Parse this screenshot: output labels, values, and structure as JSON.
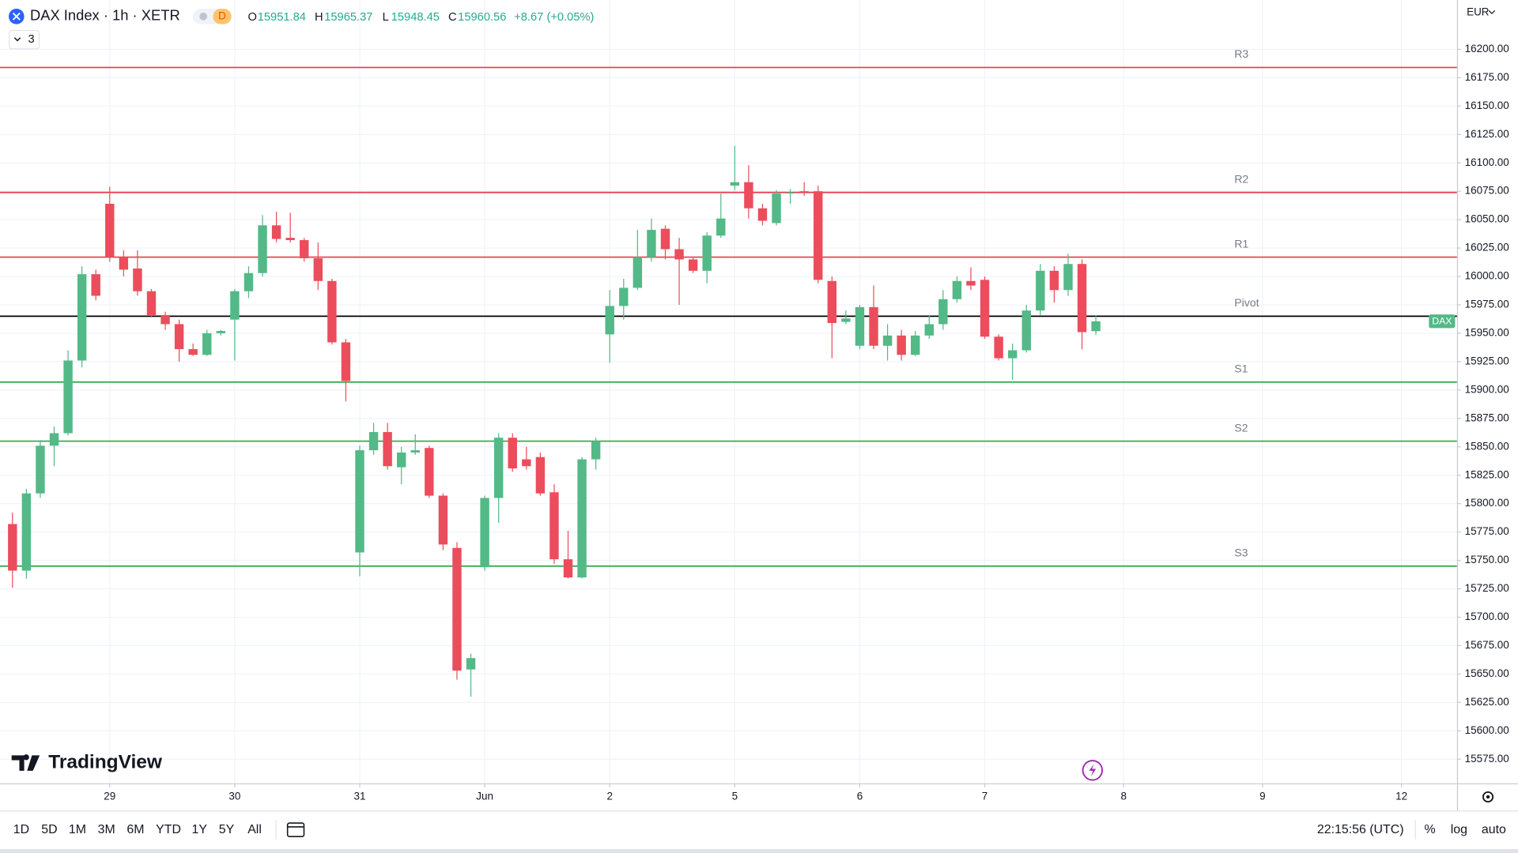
{
  "header": {
    "symbol": "DAX Index · 1h · XETR",
    "interval_badge": "D",
    "indicator_count": "3",
    "open_label": "O",
    "high_label": "H",
    "low_label": "L",
    "close_label": "C",
    "change": "+8.67 (+0.05%)"
  },
  "currency": "EUR",
  "brand": "TradingView",
  "price_label": "DAX",
  "toolbar": {
    "ranges": [
      "1D",
      "5D",
      "1M",
      "3M",
      "6M",
      "YTD",
      "1Y",
      "5Y",
      "All"
    ],
    "clock": "22:15:56 (UTC)",
    "percent": "%",
    "log": "log",
    "auto": "auto"
  },
  "chart_data": {
    "type": "candlestick",
    "up_color": "#53b987",
    "down_color": "#eb4d5c",
    "open": [
      15782,
      15741,
      15809,
      15851,
      15862,
      15926,
      16002,
      16064,
      16017,
      16007,
      15987,
      15966,
      15958,
      15936,
      15931,
      15950,
      15962,
      15987,
      16003,
      16045,
      16034,
      16032,
      16016,
      15996,
      15942,
      15757,
      15847,
      15863,
      15832,
      15845,
      15849,
      15807,
      15761,
      15654,
      15744,
      15805,
      15858,
      15839,
      15841,
      15810,
      15751,
      15735,
      15839,
      15949,
      15974,
      15990,
      16017,
      16042,
      16024,
      16015,
      16005,
      16036,
      16080,
      16083,
      16060,
      16047,
      16073,
      16075,
      16075,
      15996,
      15960,
      15939,
      15973,
      15939,
      15948,
      15931,
      15948,
      15958,
      15980,
      15996,
      15997,
      15947,
      15928,
      15935,
      15970,
      16005,
      15988,
      16011,
      15951.84
    ],
    "high": [
      15792,
      15813,
      15856,
      15868,
      15935,
      16009,
      16006,
      16079,
      16023,
      16023,
      15989,
      15969,
      15962,
      15941,
      15953,
      15953,
      15989,
      16009,
      16054,
      16057,
      16056,
      16034,
      16030,
      15998,
      15945,
      15851,
      15871,
      15871,
      15850,
      15861,
      15851,
      15809,
      15766,
      15668,
      15807,
      15862,
      15862,
      15850,
      15845,
      15817,
      15776,
      15841,
      15858,
      15988,
      15998,
      16041,
      16051,
      16045,
      16034,
      16017,
      16039,
      16073,
      16115,
      16098,
      16064,
      16076,
      16077,
      16083,
      16080,
      16000,
      15970,
      15975,
      15992,
      15958,
      15953,
      15952,
      15966,
      15988,
      16000,
      16008,
      16000,
      15949,
      15941,
      15975,
      16011,
      16009,
      16020,
      16015,
      15965.37
    ],
    "low": [
      15726,
      15734,
      15805,
      15833,
      15860,
      15920,
      15979,
      16013,
      16000,
      15983,
      15964,
      15953,
      15925,
      15930,
      15930,
      15948,
      15926,
      15981,
      16000,
      16030,
      16030,
      16013,
      15988,
      15940,
      15890,
      15736,
      15843,
      15830,
      15817,
      15843,
      15805,
      15759,
      15645,
      15630,
      15741,
      15783,
      15828,
      15830,
      15807,
      15747,
      15734,
      15734,
      15830,
      15924,
      15962,
      15988,
      16013,
      16015,
      15975,
      16003,
      15994,
      16034,
      16076,
      16051,
      16045,
      16045,
      16064,
      16071,
      15994,
      15928,
      15958,
      15936,
      15936,
      15926,
      15926,
      15930,
      15945,
      15953,
      15977,
      15988,
      15945,
      15926,
      15909,
      15933,
      15966,
      15977,
      15983,
      15936,
      15948.45
    ],
    "close": [
      15741,
      15809,
      15851,
      15862,
      15926,
      16002,
      15983,
      16017,
      16006,
      15987,
      15966,
      15958,
      15936,
      15931,
      15950,
      15952,
      15987,
      16003,
      16045,
      16033,
      16032,
      16016,
      15996,
      15942,
      15908,
      15847,
      15863,
      15833,
      15845,
      15847,
      15807,
      15764,
      15653,
      15664,
      15805,
      15858,
      15831,
      15833,
      15809,
      15751,
      15735,
      15839,
      15855,
      15974,
      15990,
      16017,
      16041,
      16024,
      16015,
      16005,
      16036,
      16051,
      16083,
      16060,
      16049,
      16073,
      16074,
      16074,
      15997,
      15959,
      15963,
      15973,
      15939,
      15948,
      15931,
      15948,
      15958,
      15980,
      15996,
      15992,
      15947,
      15928,
      15935,
      15970,
      16005,
      15988,
      16011,
      15951,
      15960.56
    ],
    "levels": [
      {
        "label": "R3",
        "value": 16184,
        "color": "#e8374a"
      },
      {
        "label": "R2",
        "value": 16074,
        "color": "#e8374a"
      },
      {
        "label": "R1",
        "value": 16017,
        "color": "#e8374a"
      },
      {
        "label": "Pivot",
        "value": 15965,
        "color": "#000000"
      },
      {
        "label": "S1",
        "value": 15907,
        "color": "#27a844"
      },
      {
        "label": "S2",
        "value": 15855,
        "color": "#27a844"
      },
      {
        "label": "S3",
        "value": 15745,
        "color": "#27a844"
      }
    ],
    "xlim": [
      -0.9,
      104
    ],
    "xticks": [
      {
        "value": 7,
        "label": "29"
      },
      {
        "value": 16,
        "label": "30"
      },
      {
        "value": 25,
        "label": "31"
      },
      {
        "value": 34,
        "label": "Jun"
      },
      {
        "value": 43,
        "label": "2"
      },
      {
        "value": 52,
        "label": "5"
      },
      {
        "value": 61,
        "label": "6"
      },
      {
        "value": 70,
        "label": "7"
      },
      {
        "value": 80,
        "label": "8"
      },
      {
        "value": 90,
        "label": "9"
      },
      {
        "value": 100,
        "label": "12"
      }
    ],
    "ylim": [
      15553.7,
      16243.4
    ],
    "yticks": [
      {
        "value": 16200,
        "label": "16200.00"
      },
      {
        "value": 16175,
        "label": "16175.00"
      },
      {
        "value": 16150,
        "label": "16150.00"
      },
      {
        "value": 16125,
        "label": "16125.00"
      },
      {
        "value": 16100,
        "label": "16100.00"
      },
      {
        "value": 16075,
        "label": "16075.00"
      },
      {
        "value": 16050,
        "label": "16050.00"
      },
      {
        "value": 16025,
        "label": "16025.00"
      },
      {
        "value": 16000,
        "label": "16000.00"
      },
      {
        "value": 15975,
        "label": "15975.00"
      },
      {
        "value": 15950,
        "label": "15950.00"
      },
      {
        "value": 15925,
        "label": "15925.00"
      },
      {
        "value": 15900,
        "label": "15900.00"
      },
      {
        "value": 15875,
        "label": "15875.00"
      },
      {
        "value": 15850,
        "label": "15850.00"
      },
      {
        "value": 15825,
        "label": "15825.00"
      },
      {
        "value": 15800,
        "label": "15800.00"
      },
      {
        "value": 15775,
        "label": "15775.00"
      },
      {
        "value": 15750,
        "label": "15750.00"
      },
      {
        "value": 15725,
        "label": "15725.00"
      },
      {
        "value": 15700,
        "label": "15700.00"
      },
      {
        "value": 15675,
        "label": "15675.00"
      },
      {
        "value": 15650,
        "label": "15650.00"
      },
      {
        "value": 15625,
        "label": "15625.00"
      },
      {
        "value": 15600,
        "label": "15600.00"
      },
      {
        "value": 15575,
        "label": "15575.00"
      }
    ],
    "grid": true
  }
}
